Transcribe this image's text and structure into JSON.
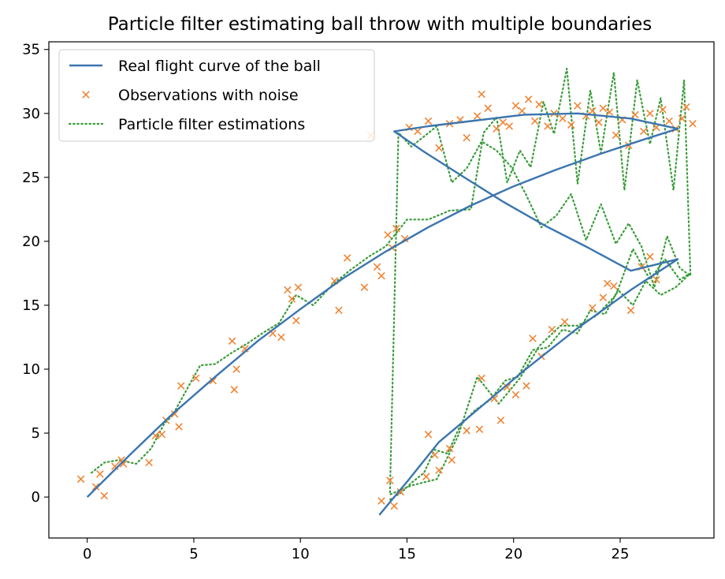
{
  "chart_data": {
    "type": "line",
    "title": "Particle filter estimating ball throw with multiple boundaries",
    "xlabel": "",
    "ylabel": "",
    "xlim": [
      -1.8,
      29.4
    ],
    "ylim": [
      -3.2,
      35.6
    ],
    "xticks": [
      0,
      5,
      10,
      15,
      20,
      25
    ],
    "yticks": [
      0,
      5,
      10,
      15,
      20,
      25,
      30,
      35
    ],
    "grid": false,
    "legend": "upper-left",
    "series": [
      {
        "name": "Real flight curve of the ball",
        "style": "solid",
        "color": "#3b75af",
        "x": [
          0,
          2,
          4,
          6,
          8,
          10,
          12,
          14,
          16,
          18,
          20,
          22,
          24,
          26,
          27.7,
          27.7,
          25.5,
          23,
          20.5,
          18,
          16,
          14.4,
          14.4,
          15.8,
          17.5,
          19.5,
          21.5,
          23.5,
          25.5,
          27.7,
          27.7,
          25.5,
          23,
          20.5,
          18.5,
          16.5,
          15,
          13.7
        ],
        "y": [
          0,
          3.3,
          6.5,
          9.4,
          12.2,
          14.7,
          17.1,
          19.2,
          21.1,
          22.8,
          24.3,
          25.6,
          26.8,
          27.9,
          28.8,
          28.8,
          29.6,
          30,
          29.9,
          29.4,
          29,
          28.6,
          28.6,
          27,
          25.2,
          23.1,
          21.2,
          19.5,
          17.7,
          18.6,
          18.6,
          16.2,
          13.2,
          9.9,
          7.1,
          4.3,
          1.2,
          -1.4
        ]
      },
      {
        "name": "Observations with noise",
        "style": "marker-x",
        "color": "#ef8536",
        "x": [
          -0.3,
          0.4,
          0.6,
          0.8,
          1.3,
          1.6,
          1.7,
          2.9,
          3.2,
          3.5,
          3.7,
          4.1,
          4.3,
          4.4,
          5.1,
          5.9,
          6.8,
          6.9,
          7.0,
          7.4,
          8.7,
          9.1,
          9.4,
          9.6,
          9.8,
          9.9,
          11.6,
          11.8,
          12.2,
          13.0,
          13.6,
          13.3,
          13.8,
          14.1,
          14.3,
          14.5,
          14.9,
          15.1,
          15.5,
          16.0,
          16.5,
          17.0,
          17.5,
          17.8,
          18.3,
          18.5,
          18.8,
          19.2,
          19.5,
          19.8,
          20.1,
          20.4,
          20.7,
          21.0,
          21.2,
          21.6,
          21.9,
          22.3,
          22.7,
          23.0,
          23.4,
          23.7,
          24.0,
          24.2,
          24.5,
          24.8,
          25.1,
          25.4,
          25.7,
          26.1,
          26.4,
          26.7,
          27.0,
          27.3,
          27.6,
          27.9,
          28.1,
          28.4,
          13.8,
          14.2,
          14.4,
          14.7,
          15.9,
          16.0,
          16.3,
          16.5,
          17.0,
          17.1,
          17.8,
          18.4,
          18.5,
          19.1,
          19.4,
          19.7,
          20.1,
          20.6,
          20.9,
          21.3,
          21.8,
          22.4,
          23.7,
          24.2,
          24.4,
          24.7,
          25.5,
          26.0,
          26.4,
          26.7
        ],
        "y": [
          1.4,
          0.8,
          1.8,
          0.1,
          2.4,
          2.9,
          2.6,
          2.7,
          4.8,
          4.9,
          6.0,
          6.5,
          5.5,
          8.7,
          9.3,
          9.1,
          12.2,
          8.4,
          10.0,
          11.6,
          12.8,
          12.5,
          16.2,
          15.5,
          13.8,
          16.4,
          16.9,
          14.6,
          18.7,
          16.4,
          18.0,
          28.3,
          17.3,
          20.5,
          19.5,
          21.0,
          20.2,
          28.9,
          28.6,
          29.4,
          27.3,
          29.2,
          29.5,
          28.1,
          29.8,
          31.5,
          30.4,
          28.8,
          29.3,
          29.0,
          30.6,
          30.2,
          31.1,
          29.4,
          30.7,
          29.0,
          30.0,
          29.6,
          29.1,
          30.6,
          29.8,
          30.2,
          29.3,
          30.4,
          30.1,
          28.3,
          29.5,
          27.5,
          29.9,
          28.6,
          30.0,
          28.9,
          30.3,
          29.4,
          28.8,
          29.6,
          30.5,
          29.2,
          -0.3,
          1.3,
          -0.7,
          0.4,
          1.6,
          4.9,
          3.3,
          2.1,
          3.8,
          2.9,
          5.2,
          5.3,
          9.3,
          7.7,
          6.0,
          8.6,
          8.0,
          8.7,
          12.4,
          11.0,
          13.1,
          13.7,
          14.8,
          15.6,
          16.7,
          16.5,
          14.6,
          18.0,
          18.8,
          17.0
        ]
      },
      {
        "name": "Particle filter estimations",
        "style": "dotted",
        "color": "#3a9c3a",
        "x": [
          0.2,
          0.8,
          1.5,
          2.3,
          3.0,
          3.6,
          4.0,
          4.5,
          5.3,
          6.0,
          6.7,
          7.5,
          8.3,
          9.0,
          9.8,
          10.6,
          11.5,
          12.3,
          13.2,
          14.0,
          15.0,
          16.0,
          17.0,
          18.0,
          18.6,
          19.2,
          19.7,
          20.3,
          20.8,
          21.4,
          21.9,
          22.5,
          23.0,
          23.6,
          24.1,
          24.7,
          25.2,
          25.8,
          26.4,
          26.9,
          27.5,
          28.0,
          28.3,
          27.8,
          27.2,
          26.6,
          26.0,
          25.4,
          24.8,
          24.1,
          23.4,
          22.7,
          22.0,
          21.3,
          20.6,
          19.9,
          19.2,
          18.5,
          17.8,
          17.1,
          16.4,
          15.8,
          15.2,
          14.6,
          14.2,
          15.2,
          16.4,
          17.4,
          18.3,
          19.3,
          20.3,
          21.2,
          22.2,
          23.0,
          23.9,
          24.8,
          25.6,
          26.4,
          27.1,
          27.8,
          28.3,
          27.6,
          26.9,
          26.2,
          25.6,
          24.9,
          24.3,
          23.6,
          23.0,
          22.3,
          21.6,
          20.9,
          20.2,
          19.6,
          18.9,
          18.2,
          17.5,
          16.9,
          16.3,
          15.8,
          15.2,
          14.7,
          14.1
        ],
        "y": [
          1.9,
          2.7,
          2.9,
          2.6,
          3.8,
          5.7,
          6.4,
          7.9,
          10.3,
          10.4,
          11.2,
          12.0,
          12.9,
          13.6,
          15.8,
          15.0,
          16.6,
          17.7,
          18.8,
          19.6,
          21.7,
          21.7,
          22.4,
          22.5,
          28.5,
          29.7,
          24.6,
          27.1,
          25.8,
          30.9,
          28.4,
          33.5,
          24.5,
          31.8,
          26.9,
          33.2,
          24.0,
          32.6,
          27.6,
          31.2,
          24.0,
          32.6,
          17.3,
          17.9,
          20.4,
          16.4,
          19.6,
          21.4,
          19.8,
          22.9,
          20.1,
          23.7,
          22.0,
          21.1,
          23.6,
          25.8,
          27.1,
          27.8,
          25.7,
          24.6,
          29.0,
          28.2,
          27.4,
          28.5,
          0.2,
          0.9,
          1.4,
          4.8,
          9.4,
          7.3,
          9.3,
          11.8,
          13.4,
          13.4,
          14.2,
          15.8,
          19.4,
          17.0,
          18.6,
          17.0,
          17.5,
          16.4,
          15.8,
          16.9,
          15.0,
          16.2,
          14.3,
          14.6,
          12.8,
          13.1,
          11.7,
          11.5,
          9.4,
          9.1,
          7.6,
          6.8,
          5.6,
          3.4,
          3.7,
          1.9,
          1.1,
          0.3,
          -0.3
        ]
      }
    ]
  }
}
